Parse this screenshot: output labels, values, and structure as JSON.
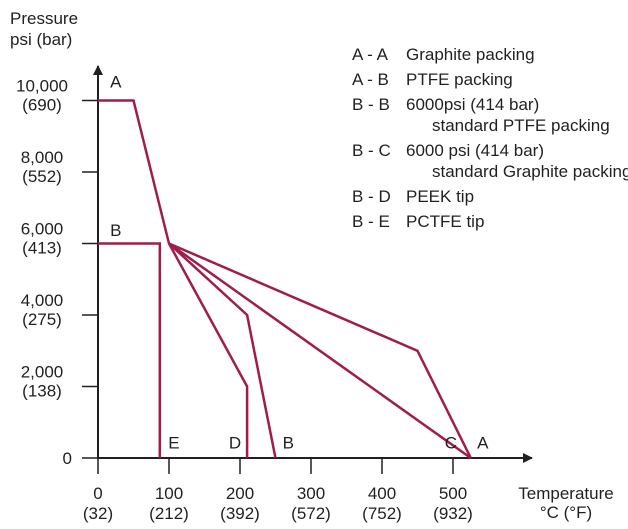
{
  "chart_data": {
    "type": "line",
    "ylabel": [
      "Pressure",
      "psi (bar)"
    ],
    "xlabel": [
      "Temperature",
      "°C (°F)"
    ],
    "xlim": [
      0,
      600
    ],
    "ylim": [
      0,
      11000
    ],
    "y_ticks": [
      {
        "value": 0,
        "label": "0"
      },
      {
        "value": 2000,
        "label": "2,000",
        "sublabel": "(138)"
      },
      {
        "value": 4000,
        "label": "4,000",
        "sublabel": "(275)"
      },
      {
        "value": 6000,
        "label": "6,000",
        "sublabel": "(413)"
      },
      {
        "value": 8000,
        "label": "8,000",
        "sublabel": "(552)"
      },
      {
        "value": 10000,
        "label": "10,000",
        "sublabel": "(690)"
      }
    ],
    "x_ticks": [
      {
        "value": 0,
        "label": "0",
        "sublabel": "(32)"
      },
      {
        "value": 100,
        "label": "100",
        "sublabel": "(212)"
      },
      {
        "value": 200,
        "label": "200",
        "sublabel": "(392)"
      },
      {
        "value": 300,
        "label": "300",
        "sublabel": "(572)"
      },
      {
        "value": 400,
        "label": "400",
        "sublabel": "(752)"
      },
      {
        "value": 500,
        "label": "500",
        "sublabel": "(932)"
      }
    ],
    "series": [
      {
        "name": "A - A",
        "x": [
          0,
          50,
          100,
          525
        ],
        "y": [
          10000,
          10000,
          6000,
          0
        ]
      },
      {
        "name": "B - B",
        "x": [
          0,
          87,
          87
        ],
        "y": [
          6000,
          6000,
          0
        ]
      },
      {
        "name": "B - C",
        "x": [
          100,
          450,
          525
        ],
        "y": [
          6000,
          3000,
          0
        ]
      },
      {
        "name": "B - D",
        "x": [
          100,
          210,
          250
        ],
        "y": [
          6000,
          4000,
          0
        ]
      },
      {
        "name": "B - E",
        "x": [
          100,
          210,
          210
        ],
        "y": [
          6000,
          2000,
          0
        ]
      }
    ],
    "point_labels": [
      {
        "text": "A",
        "x": 25,
        "y": 10500
      },
      {
        "text": "B",
        "x": 25,
        "y": 6350
      },
      {
        "text": "E",
        "x": 107,
        "y": 400
      },
      {
        "text": "D",
        "x": 193,
        "y": 400
      },
      {
        "text": "B",
        "x": 268,
        "y": 400
      },
      {
        "text": "C",
        "x": 497,
        "y": 400
      },
      {
        "text": "A",
        "x": 542,
        "y": 400
      }
    ],
    "legend": [
      {
        "key": "A - A",
        "text": [
          "Graphite packing"
        ]
      },
      {
        "key": "A - B",
        "text": [
          "PTFE packing"
        ]
      },
      {
        "key": "B - B",
        "text": [
          "6000psi (414 bar)",
          "standard PTFE packing"
        ]
      },
      {
        "key": "B - C",
        "text": [
          "6000 psi (414 bar)",
          "standard Graphite packing"
        ]
      },
      {
        "key": "B - D",
        "text": [
          "PEEK tip"
        ]
      },
      {
        "key": "B - E",
        "text": [
          "PCTFE tip"
        ]
      }
    ],
    "legend_position": "top-right",
    "grid": false,
    "colors": {
      "series": "#a01c4b",
      "axis": "#231f20"
    }
  }
}
